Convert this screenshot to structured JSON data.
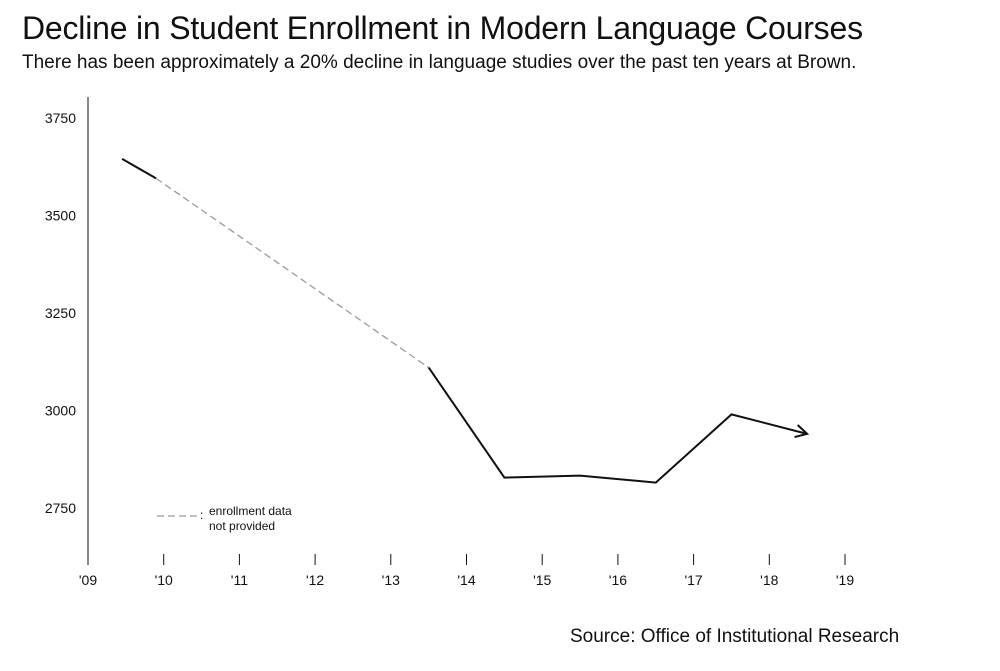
{
  "chart_data": {
    "type": "line",
    "title": "Decline in Student Enrollment in Modern Language Courses",
    "subtitle": "There has been approximately a 20% decline in language studies over the past ten years at Brown.",
    "xlabel": "",
    "ylabel": "",
    "x_ticks": [
      "'09",
      "'10",
      "'11",
      "'12",
      "'13",
      "'14",
      "'15",
      "'16",
      "'17",
      "'18",
      "'19"
    ],
    "y_ticks": [
      2750,
      3000,
      3250,
      3500,
      3750
    ],
    "ylim": [
      2750,
      3750
    ],
    "grid": false,
    "series": [
      {
        "style": "solid",
        "color": "#111111",
        "points": [
          [
            2009.45,
            3645
          ],
          [
            2009.9,
            3595
          ]
        ]
      },
      {
        "style": "dashed",
        "color": "#9a9a9a",
        "points": [
          [
            2009.9,
            3595
          ],
          [
            2013.5,
            3110
          ]
        ]
      },
      {
        "style": "solid",
        "color": "#111111",
        "points": [
          [
            2013.5,
            3110
          ],
          [
            2014.5,
            2828
          ],
          [
            2015.5,
            2833
          ],
          [
            2016.5,
            2815
          ],
          [
            2017.5,
            2990
          ],
          [
            2018.5,
            2940
          ]
        ]
      }
    ],
    "legend": {
      "label_line1": "enrollment data",
      "label_line2": "not provided",
      "placement": "bottom-left"
    },
    "source": "Source: Office of Institutional Research"
  }
}
